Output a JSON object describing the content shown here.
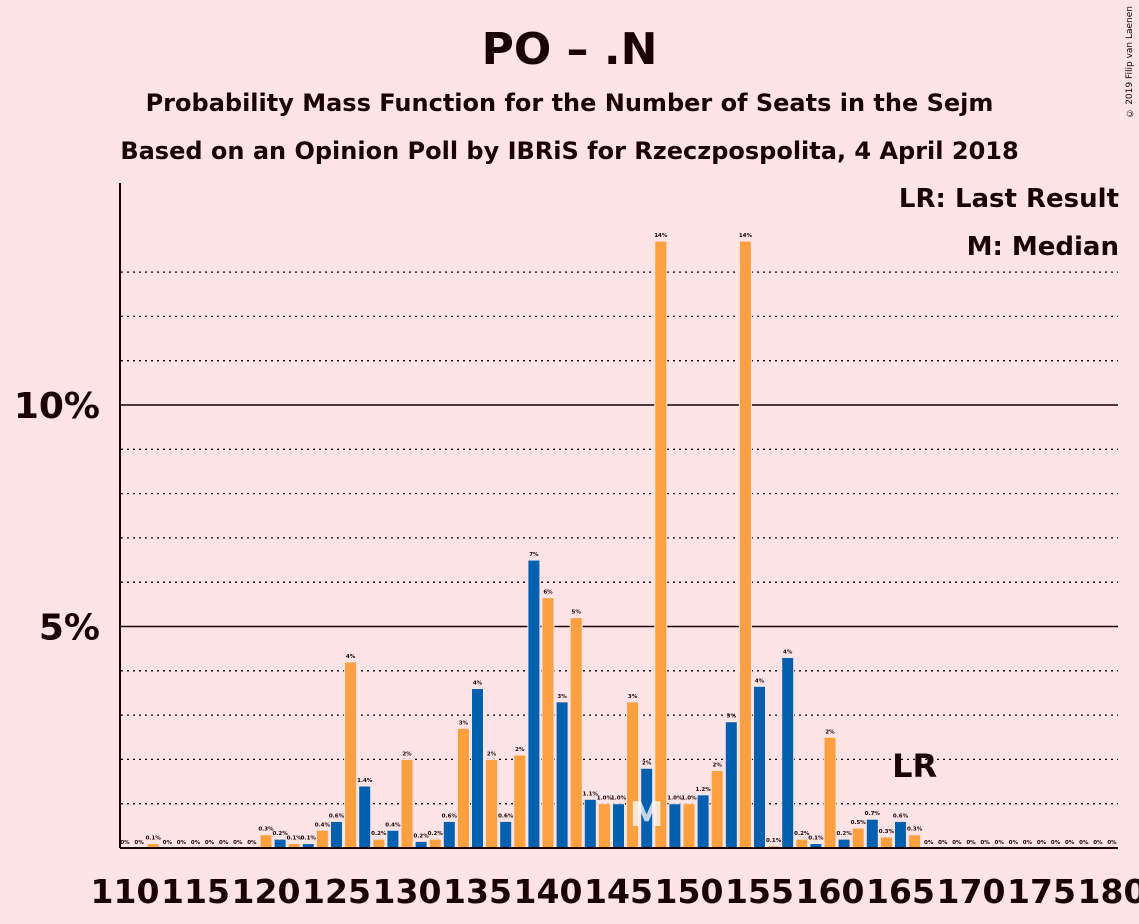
{
  "title": "PO – .N",
  "subtitle1": "Probability Mass Function for the Number of Seats in the Sejm",
  "subtitle2": "Based on an Opinion Poll by IBRiS for Rzeczpospolita, 4 April 2018",
  "copyright": "© 2019 Filip van Laenen",
  "legend": {
    "last_result": "LR: Last Result",
    "median": "M: Median"
  },
  "markers": {
    "median_label": "M",
    "median_seat": 147,
    "last_result_label": "LR",
    "last_result_seat": 166
  },
  "colors": {
    "blue": "#0060B0",
    "orange": "#FFA040",
    "background": "#FFE4E6",
    "axis": "#1a0000"
  },
  "chart_data": {
    "type": "bar",
    "xlim": [
      110,
      180
    ],
    "ylim": [
      0,
      15
    ],
    "x_ticks": [
      "110",
      "115",
      "120",
      "125",
      "130",
      "135",
      "140",
      "145",
      "150",
      "155",
      "160",
      "165",
      "170",
      "175",
      "180"
    ],
    "y_ticks": [
      {
        "value": 5,
        "label": "5%"
      },
      {
        "value": 10,
        "label": "10%"
      }
    ],
    "seats": [
      110,
      111,
      112,
      113,
      114,
      115,
      116,
      117,
      118,
      119,
      120,
      121,
      122,
      123,
      124,
      125,
      126,
      127,
      128,
      129,
      130,
      131,
      132,
      133,
      134,
      135,
      136,
      137,
      138,
      139,
      140,
      141,
      142,
      143,
      144,
      145,
      146,
      147,
      148,
      149,
      150,
      151,
      152,
      153,
      154,
      155,
      156,
      157,
      158,
      159,
      160,
      161,
      162,
      163,
      164,
      165,
      166,
      167,
      168,
      169,
      170,
      171,
      172,
      173,
      174,
      175,
      176,
      177,
      178,
      179,
      180
    ],
    "values": [
      0,
      0,
      0.1,
      0,
      0,
      0,
      0,
      0,
      0,
      0,
      0.3,
      0.2,
      0.1,
      0.1,
      0.4,
      0.6,
      4.2,
      1.4,
      0.2,
      0.4,
      2.0,
      0.15,
      0.2,
      0.6,
      2.7,
      3.6,
      2.0,
      0.6,
      2.1,
      6.5,
      5.65,
      3.3,
      5.2,
      1.1,
      1.0,
      1.0,
      3.3,
      1.8,
      13.7,
      1.0,
      1.0,
      1.2,
      1.75,
      2.85,
      13.7,
      3.65,
      0.05,
      4.3,
      0.2,
      0.1,
      2.5,
      0.2,
      0.45,
      0.65,
      0.25,
      0.6,
      0.3,
      0,
      0,
      0,
      0,
      0,
      0,
      0,
      0,
      0,
      0,
      0,
      0,
      0,
      0
    ],
    "data_labels": [
      "0%",
      "0%",
      "0.1%",
      "0%",
      "0%",
      "0%",
      "0%",
      "0%",
      "0%",
      "0%",
      "0.3%",
      "0.2%",
      "0.1%",
      "0.1%",
      "0.4%",
      "0.6%",
      "4%",
      "1.4%",
      "0.2%",
      "0.4%",
      "2%",
      "0.2%",
      "0.2%",
      "0.6%",
      "3%",
      "4%",
      "2%",
      "0.6%",
      "2%",
      "7%",
      "6%",
      "3%",
      "5%",
      "1.1%",
      "1.0%",
      "1.0%",
      "3%",
      "2%",
      "14%",
      "1.0%",
      "1.0%",
      "1.2%",
      "2%",
      "3%",
      "14%",
      "4%",
      "0.1%",
      "4%",
      "0.2%",
      "0.1%",
      "2%",
      "0.2%",
      "0.5%",
      "0.7%",
      "0.3%",
      "0.6%",
      "0.3%",
      "0%",
      "0%",
      "0%",
      "0%",
      "0%",
      "0%",
      "0%",
      "0%",
      "0%",
      "0%",
      "0%",
      "0%",
      "0%",
      "0%"
    ]
  }
}
